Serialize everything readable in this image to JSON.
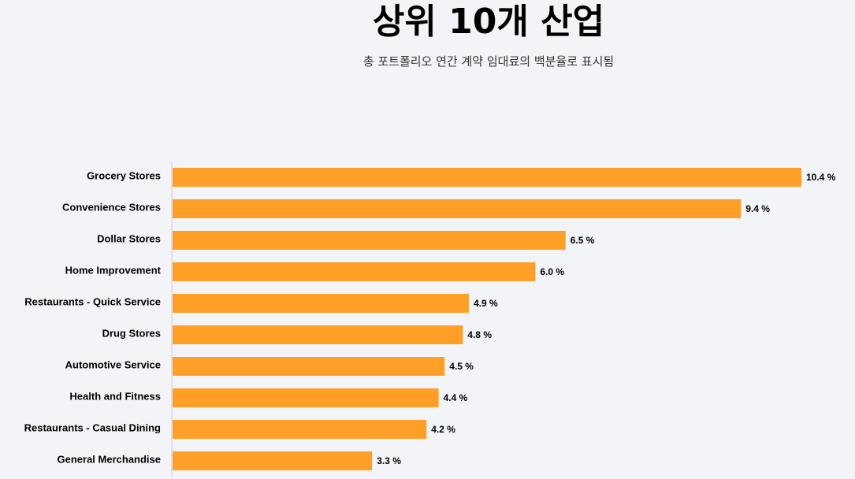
{
  "title": "상위 10개 산업",
  "subtitle": "총 포트폴리오 연간 계약 임대료의 백분율로 표시됨",
  "colors": {
    "bar": "#ff9f27",
    "axis": "#cccccc",
    "background": "#f3f4f7"
  },
  "chart_data": {
    "type": "bar",
    "orientation": "horizontal",
    "title": "상위 10개 산업",
    "subtitle": "총 포트폴리오 연간 계약 임대료의 백분율로 표시됨",
    "categories": [
      "Grocery Stores",
      "Convenience Stores",
      "Dollar Stores",
      "Home Improvement",
      "Restaurants - Quick Service",
      "Drug Stores",
      "Automotive Service",
      "Health and Fitness",
      "Restaurants - Casual Dining",
      "General Merchandise"
    ],
    "values": [
      10.4,
      9.4,
      6.5,
      6.0,
      4.9,
      4.8,
      4.5,
      4.4,
      4.2,
      3.3
    ],
    "value_labels": [
      "10.4 %",
      "9.4 %",
      "6.5 %",
      "6.0 %",
      "4.9 %",
      "4.8 %",
      "4.5 %",
      "4.4 %",
      "4.2 %",
      "3.3 %"
    ],
    "unit": "%",
    "xlim": [
      0,
      10.4
    ],
    "grid": false,
    "legend": "none"
  }
}
